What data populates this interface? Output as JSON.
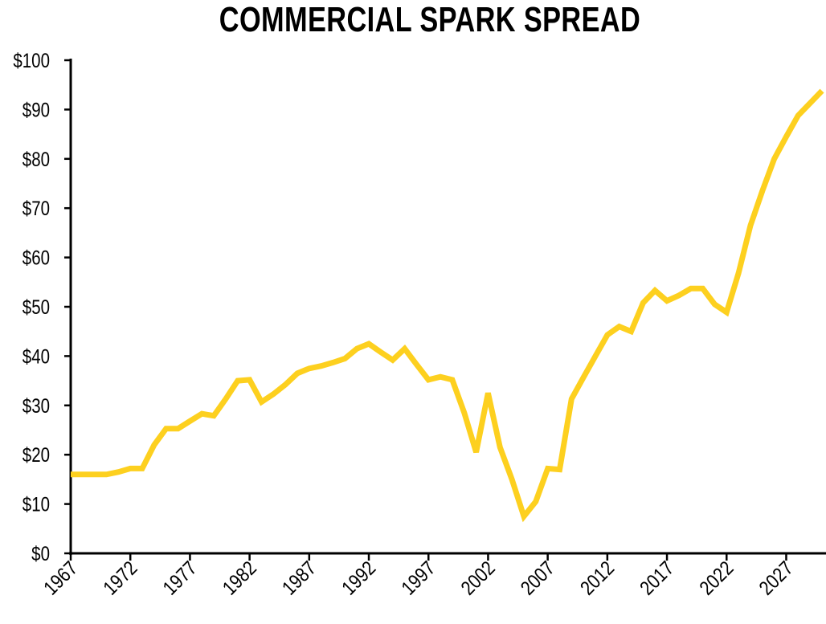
{
  "chart_data": {
    "type": "line",
    "title": "COMMERCIAL SPARK SPREAD",
    "xlabel": "",
    "ylabel": "",
    "xlim": [
      1967,
      2030
    ],
    "ylim": [
      0,
      100
    ],
    "grid": false,
    "line_color": "#FDD01F",
    "x_ticks": [
      "1967",
      "1972",
      "1977",
      "1982",
      "1987",
      "1992",
      "1997",
      "2002",
      "2007",
      "2012",
      "2017",
      "2022",
      "2027"
    ],
    "y_ticks": [
      "$0",
      "$10",
      "$20",
      "$30",
      "$40",
      "$50",
      "$60",
      "$70",
      "$80",
      "$90",
      "$100"
    ],
    "series": [
      {
        "x": [
          1967,
          1968,
          1969,
          1970,
          1971,
          1972,
          1973,
          1974,
          1975,
          1976,
          1977,
          1978,
          1979,
          1980,
          1981,
          1982,
          1983,
          1984,
          1985,
          1986,
          1987,
          1988,
          1989,
          1990,
          1991,
          1992,
          1993,
          1994,
          1995,
          1996,
          1997,
          1998,
          1999,
          2000,
          2001,
          2002,
          2003,
          2004,
          2005,
          2006,
          2007,
          2008,
          2009,
          2010,
          2011,
          2012,
          2013,
          2014,
          2015,
          2016,
          2017,
          2018,
          2019,
          2020,
          2021,
          2022,
          2023,
          2024,
          2025,
          2026,
          2027,
          2028,
          2029,
          2030
        ],
        "values": [
          16,
          16,
          16,
          16,
          16.5,
          17.2,
          17.2,
          22,
          25.3,
          25.3,
          26.8,
          28.3,
          27.9,
          31.3,
          35,
          35.2,
          30.7,
          32.3,
          34.2,
          36.5,
          37.5,
          38,
          38.7,
          39.5,
          41.5,
          42.5,
          40.8,
          39.2,
          41.5,
          38.3,
          35.2,
          35.8,
          35.2,
          28.5,
          20.5,
          32.5,
          21.5,
          15,
          7.5,
          10.5,
          17.2,
          17,
          31.3,
          35.7,
          40,
          44.3,
          46,
          45,
          50.8,
          53.3,
          51.2,
          52.3,
          53.7,
          53.7,
          50.5,
          48.9,
          56.8,
          66.5,
          73.5,
          80,
          84.5,
          88.8,
          91.3,
          93.8
        ]
      }
    ]
  }
}
